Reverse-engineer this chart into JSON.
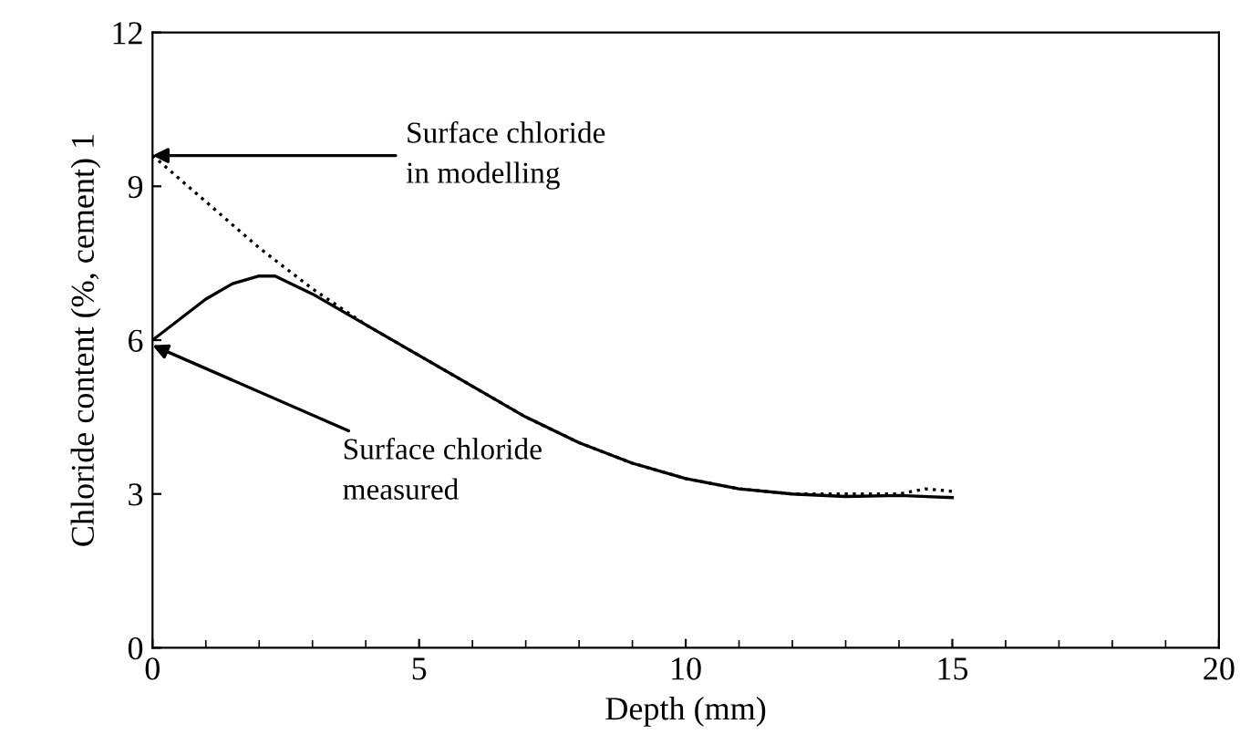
{
  "chart_data": {
    "type": "line",
    "xlabel": "Depth (mm)",
    "ylabel": "Chloride content (%, cement) 1",
    "xlim": [
      0,
      20
    ],
    "xticks": [
      0,
      5,
      10,
      15,
      20
    ],
    "ylim": [
      0,
      12
    ],
    "yticks": [
      0,
      3,
      6,
      9,
      12
    ],
    "grid": false,
    "legend": false,
    "marker": "none",
    "series": [
      {
        "color": "#000000",
        "line_style": "solid",
        "x": [
          0,
          0.5,
          1,
          1.5,
          2,
          2.3,
          2.6,
          3,
          4,
          5,
          6,
          7,
          8,
          9,
          10,
          11,
          12,
          13,
          14,
          15
        ],
        "values": [
          6.0,
          6.4,
          6.8,
          7.1,
          7.25,
          7.25,
          7.1,
          6.9,
          6.3,
          5.7,
          5.1,
          4.5,
          4.0,
          3.6,
          3.3,
          3.1,
          3.0,
          2.95,
          2.97,
          2.93
        ]
      },
      {
        "color": "#000000",
        "line_style": "dotted",
        "x": [
          0,
          1,
          2,
          3,
          4,
          5,
          6,
          7,
          8,
          9,
          10,
          11,
          12,
          13,
          14,
          14.5,
          15
        ],
        "values": [
          9.6,
          8.7,
          7.8,
          7.0,
          6.3,
          5.7,
          5.1,
          4.5,
          4.0,
          3.6,
          3.3,
          3.1,
          3.0,
          3.0,
          3.0,
          3.1,
          3.05
        ]
      }
    ],
    "annotations": [
      {
        "text": "Surface chloride\nin modelling",
        "x": 0,
        "y": 9.6
      },
      {
        "text": "Surface chloride\nmeasured",
        "x": 0,
        "y": 5.9
      }
    ]
  }
}
